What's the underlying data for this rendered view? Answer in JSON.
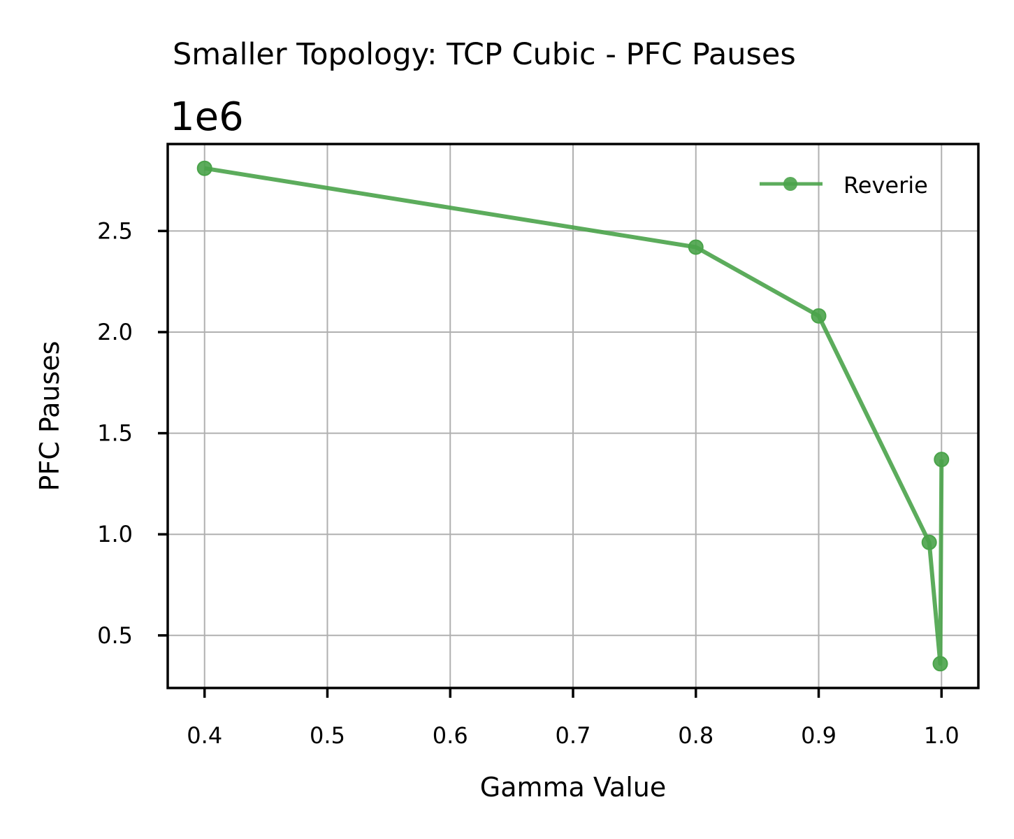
{
  "chart_data": {
    "type": "line",
    "title": "Smaller Topology: TCP Cubic - PFC Pauses",
    "xlabel": "Gamma Value",
    "ylabel": "PFC Pauses",
    "y_offset_label": "1e6",
    "xlim": [
      0.37,
      1.03
    ],
    "ylim": [
      0.24,
      2.93
    ],
    "x_ticks": [
      0.4,
      0.5,
      0.6,
      0.7,
      0.8,
      0.9,
      1.0
    ],
    "x_tick_labels": [
      "0.4",
      "0.5",
      "0.6",
      "0.7",
      "0.8",
      "0.9",
      "1.0"
    ],
    "y_ticks": [
      0.5,
      1.0,
      1.5,
      2.0,
      2.5
    ],
    "y_tick_labels": [
      "0.5",
      "1.0",
      "1.5",
      "2.0",
      "2.5"
    ],
    "grid": true,
    "legend_position": "top-right",
    "series": [
      {
        "name": "Reverie",
        "color": "#4aa34a",
        "marker": "circle",
        "x": [
          0.4,
          0.8,
          0.9,
          0.99,
          0.999,
          1.0
        ],
        "y": [
          2.81,
          2.42,
          2.08,
          0.96,
          0.36,
          1.37
        ]
      }
    ]
  }
}
